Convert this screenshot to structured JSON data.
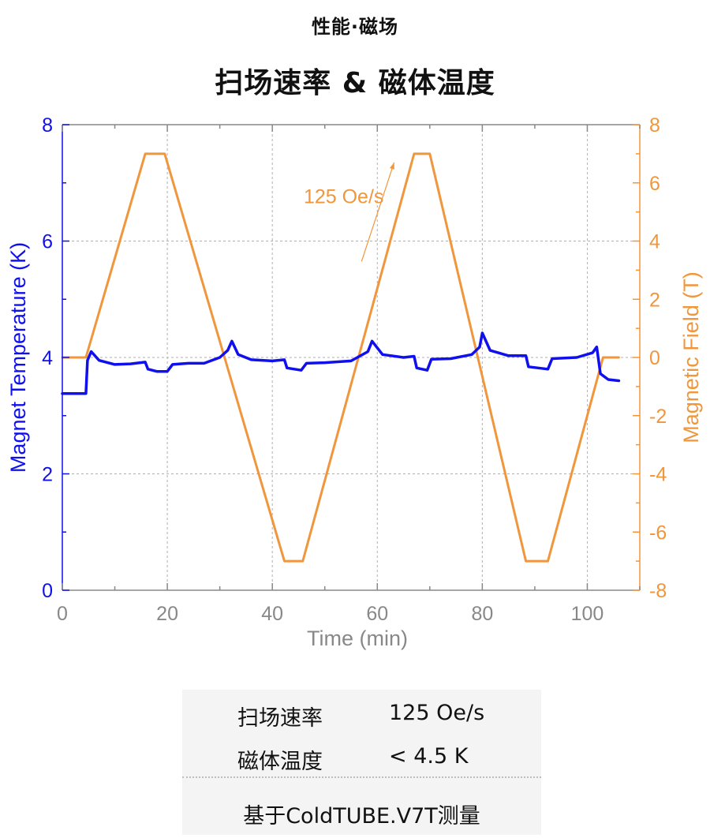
{
  "header": {
    "kicker": "性能·磁场",
    "title": "扫场速率 & 磁体温度"
  },
  "chart_data": {
    "type": "line",
    "xlabel": "Time (min)",
    "ylabel_left": "Magnet Temperature (K)",
    "ylabel_right": "Magnetic Field (T)",
    "xlim": [
      0,
      110
    ],
    "ylim_left": [
      0,
      8
    ],
    "ylim_right": [
      -8,
      8
    ],
    "x_ticks": [
      "0",
      "20",
      "40",
      "60",
      "80",
      "100"
    ],
    "y_left_ticks": [
      "0",
      "2",
      "4",
      "6",
      "8"
    ],
    "y_right_ticks": [
      "-8",
      "-6",
      "-4",
      "-2",
      "0",
      "2",
      "4",
      "6",
      "8"
    ],
    "grid": true,
    "annotation": "125 Oe/s",
    "colors": {
      "temperature": "#1010ee",
      "field": "#f0963c",
      "axis": "#888888"
    },
    "series": [
      {
        "axis": "right",
        "x": [
          0,
          4.5,
          15.8,
          19.5,
          42.3,
          45.8,
          67,
          70,
          88.3,
          92.5,
          103,
          106
        ],
        "values": [
          0,
          0,
          7,
          7,
          -7,
          -7,
          7,
          7,
          -7,
          -7,
          0,
          0
        ]
      },
      {
        "axis": "left",
        "x": [
          0,
          4.5,
          4.8,
          5.5,
          7,
          10,
          13,
          15.8,
          16.3,
          18,
          20,
          21,
          24,
          27,
          30,
          31.5,
          32.3,
          33.5,
          36,
          40,
          42.3,
          42.8,
          45.5,
          46.5,
          50,
          55,
          58.2,
          59,
          61,
          65,
          67,
          67.5,
          69.5,
          70.3,
          74,
          78,
          79.5,
          80,
          81.5,
          85,
          88.3,
          88.8,
          92.5,
          93.3,
          98,
          101,
          101.8,
          102.5,
          104,
          106
        ],
        "values": [
          3.38,
          3.38,
          3.95,
          4.1,
          3.95,
          3.88,
          3.89,
          3.92,
          3.8,
          3.76,
          3.76,
          3.88,
          3.9,
          3.9,
          4.0,
          4.12,
          4.28,
          4.05,
          3.96,
          3.94,
          3.96,
          3.82,
          3.78,
          3.9,
          3.91,
          3.94,
          4.1,
          4.28,
          4.05,
          4.0,
          4.02,
          3.82,
          3.78,
          3.97,
          3.98,
          4.05,
          4.18,
          4.42,
          4.12,
          4.03,
          4.03,
          3.84,
          3.8,
          3.98,
          4.0,
          4.08,
          4.18,
          3.72,
          3.62,
          3.6
        ]
      }
    ]
  },
  "specs": [
    {
      "label": "扫场速率",
      "value": "125 Oe/s"
    },
    {
      "label": "磁体温度",
      "value": "< 4.5 K"
    }
  ],
  "note": "基于ColdTUBE.V7T测量"
}
